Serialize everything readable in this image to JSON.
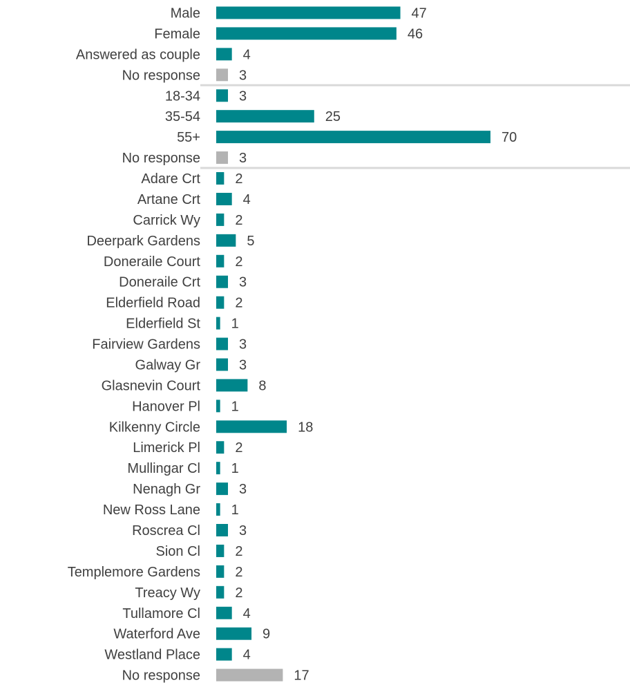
{
  "chart_data": {
    "type": "bar",
    "orientation": "horizontal",
    "grid": false,
    "legend": "none",
    "xlim": [
      0,
      70
    ],
    "colors": {
      "bar": "#00868B",
      "no_response": "#B3B3B3",
      "divider": "#D9D9D9",
      "text": "#404040"
    },
    "groups": [
      {
        "categories": [
          "Male",
          "Female",
          "Answered as couple",
          "No response"
        ],
        "values": [
          47,
          46,
          4,
          3
        ]
      },
      {
        "categories": [
          "18-34",
          "35-54",
          "55+",
          "No response"
        ],
        "values": [
          3,
          25,
          70,
          3
        ]
      },
      {
        "categories": [
          "Adare Crt",
          "Artane Crt",
          "Carrick Wy",
          "Deerpark Gardens",
          "Doneraile Court",
          "Doneraile Crt",
          "Elderfield Road",
          "Elderfield St",
          "Fairview Gardens",
          "Galway Gr",
          "Glasnevin Court",
          "Hanover Pl",
          "Kilkenny Circle",
          "Limerick Pl",
          "Mullingar Cl",
          "Nenagh Gr",
          "New Ross Lane",
          "Roscrea Cl",
          "Sion Cl",
          "Templemore Gardens",
          "Treacy Wy",
          "Tullamore Cl",
          "Waterford Ave",
          "Westland Place",
          "No response"
        ],
        "values": [
          2,
          4,
          2,
          5,
          2,
          3,
          2,
          1,
          3,
          3,
          8,
          1,
          18,
          2,
          1,
          3,
          1,
          3,
          2,
          2,
          2,
          4,
          9,
          4,
          17
        ]
      }
    ]
  }
}
